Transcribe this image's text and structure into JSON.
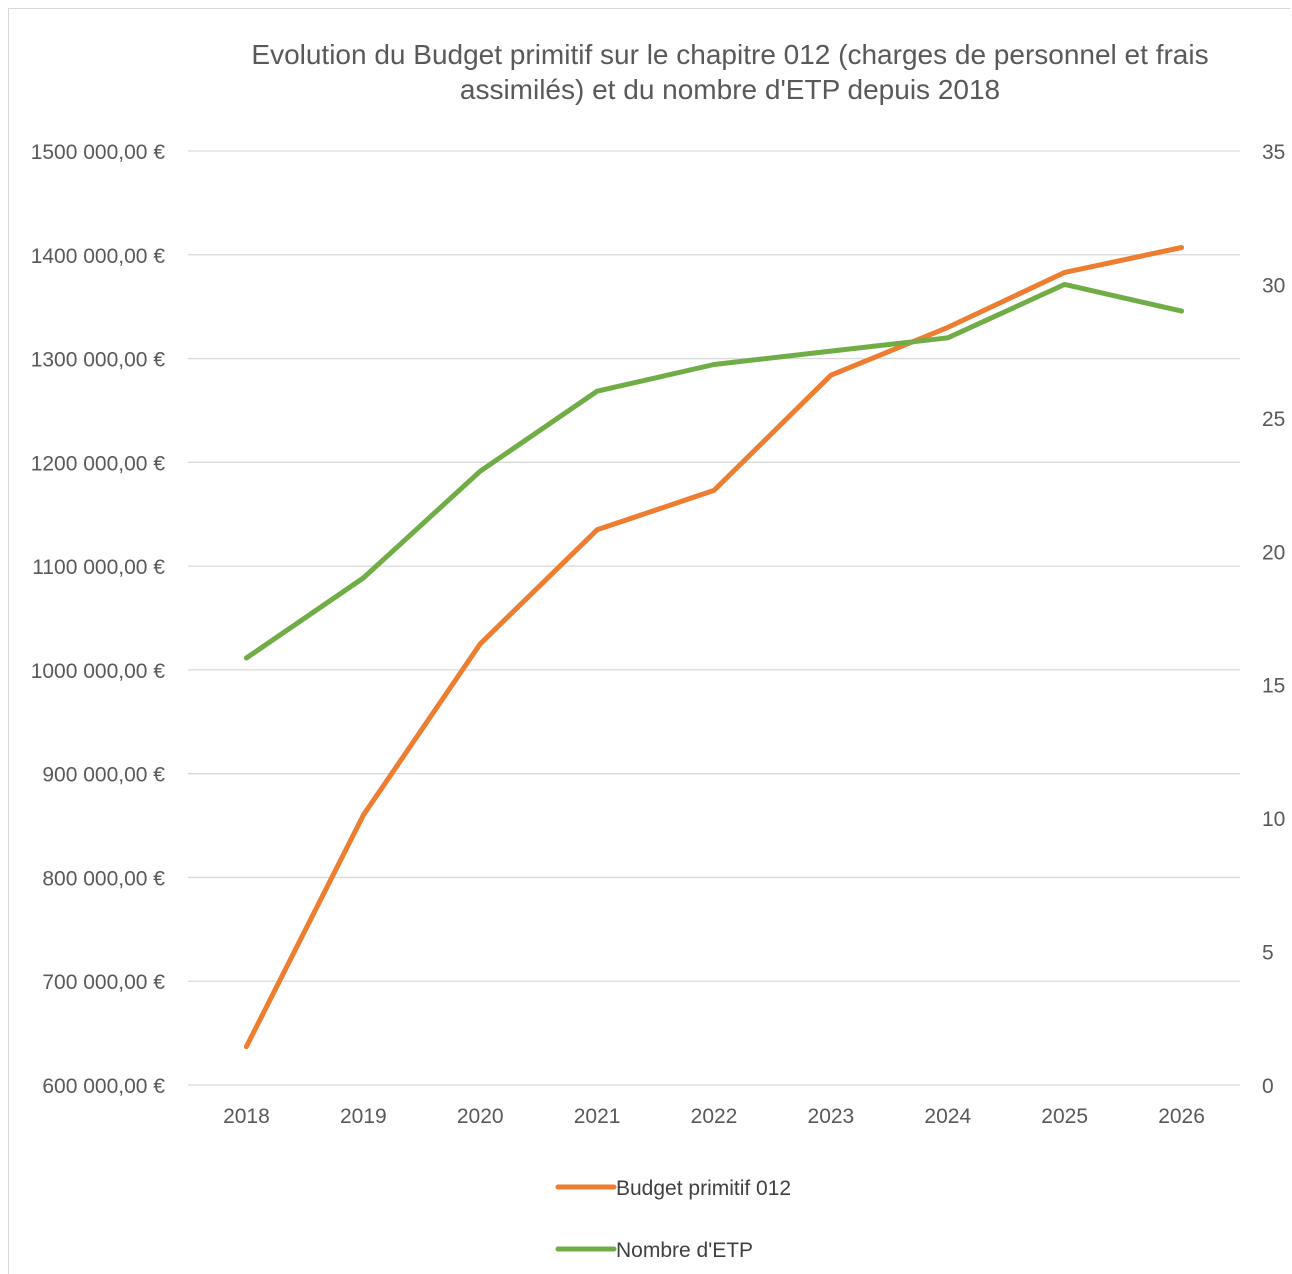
{
  "chart_data": {
    "type": "line",
    "title": "Evolution du Budget primitif sur le chapitre 012 (charges de personnel et frais assimilés) et du nombre d'ETP depuis 2018",
    "title_lines": [
      "Evolution du Budget primitif sur le chapitre 012 (charges de personnel et frais",
      "assimilés) et du nombre d'ETP depuis 2018"
    ],
    "categories": [
      "2018",
      "2019",
      "2020",
      "2021",
      "2022",
      "2023",
      "2024",
      "2025",
      "2026"
    ],
    "y_left": {
      "ylim": [
        600000,
        1500000
      ],
      "ticks": [
        600000,
        700000,
        800000,
        900000,
        1000000,
        1100000,
        1200000,
        1300000,
        1400000,
        1500000
      ],
      "tick_labels": [
        "600 000,00 €",
        "700 000,00 €",
        "800 000,00 €",
        "900 000,00 €",
        "1000 000,00 €",
        "1100 000,00 €",
        "1200 000,00 €",
        "1300 000,00 €",
        "1400 000,00 €",
        "1500 000,00 €"
      ]
    },
    "y_right": {
      "ylim": [
        0,
        35
      ],
      "ticks": [
        0,
        5,
        10,
        15,
        20,
        25,
        30,
        35
      ],
      "tick_labels": [
        "0",
        "5",
        "10",
        "15",
        "20",
        "25",
        "30",
        "35"
      ]
    },
    "series": [
      {
        "name": "Budget primitif 012",
        "axis": "left",
        "color": "#ED7D31",
        "values": [
          637000,
          860000,
          1025000,
          1135000,
          1173000,
          1284000,
          1330000,
          1383000,
          1407000
        ]
      },
      {
        "name": "Nombre d'ETP",
        "axis": "right",
        "color": "#70AD47",
        "values": [
          16,
          19,
          23,
          26,
          27,
          27.5,
          28,
          30,
          29
        ]
      }
    ],
    "grid": true,
    "legend_position": "bottom"
  }
}
